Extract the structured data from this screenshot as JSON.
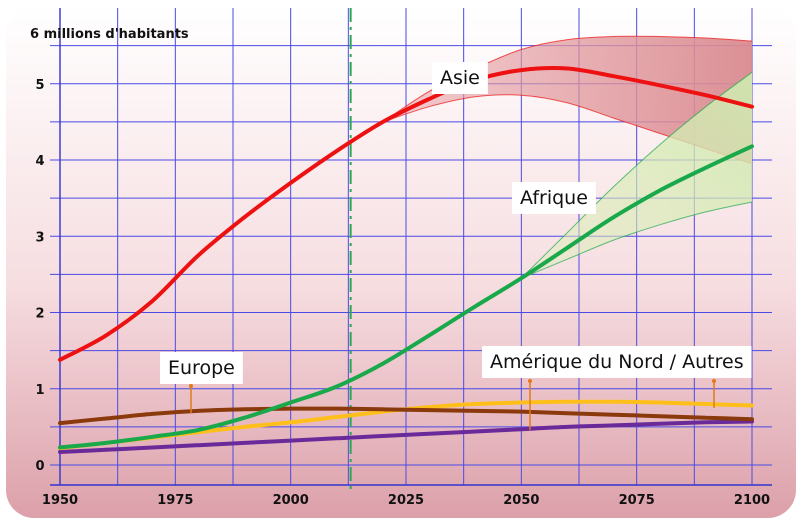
{
  "chart_data": {
    "type": "line",
    "ylabel": "6 millions d'habitants",
    "xlim": [
      1950,
      2100
    ],
    "ylim": [
      0,
      6
    ],
    "x_ticks": [
      1950,
      1975,
      2000,
      2025,
      2050,
      2075,
      2100
    ],
    "y_ticks": [
      0,
      1,
      2,
      3,
      4,
      5
    ],
    "grid": true,
    "vertical_marker_x": 2013,
    "x": [
      1950,
      1960,
      1970,
      1980,
      1990,
      2000,
      2010,
      2020,
      2030,
      2040,
      2050,
      2060,
      2070,
      2080,
      2090,
      2100
    ],
    "series": [
      {
        "name": "Asie",
        "color": "#ee1111",
        "values": [
          1.38,
          1.7,
          2.15,
          2.75,
          3.25,
          3.7,
          4.12,
          4.5,
          4.8,
          5.05,
          5.18,
          5.2,
          5.1,
          4.98,
          4.85,
          4.7
        ],
        "band_low": [
          null,
          null,
          null,
          null,
          null,
          null,
          null,
          4.5,
          4.7,
          4.83,
          4.85,
          4.75,
          4.55,
          4.35,
          4.15,
          3.95
        ],
        "band_high": [
          null,
          null,
          null,
          null,
          null,
          null,
          null,
          4.5,
          4.9,
          5.2,
          5.45,
          5.58,
          5.62,
          5.62,
          5.6,
          5.56
        ]
      },
      {
        "name": "Afrique",
        "color": "#19a84a",
        "values": [
          0.23,
          0.29,
          0.37,
          0.46,
          0.62,
          0.82,
          1.03,
          1.33,
          1.7,
          2.08,
          2.45,
          2.85,
          3.25,
          3.6,
          3.9,
          4.18
        ],
        "band_low": [
          null,
          null,
          null,
          null,
          null,
          null,
          null,
          null,
          null,
          null,
          2.45,
          2.7,
          2.95,
          3.15,
          3.32,
          3.45
        ],
        "band_high": [
          null,
          null,
          null,
          null,
          null,
          null,
          null,
          null,
          null,
          null,
          2.45,
          3.05,
          3.65,
          4.2,
          4.7,
          5.15
        ]
      },
      {
        "name": "Europe",
        "color": "#8a3a0c",
        "values": [
          0.55,
          0.61,
          0.67,
          0.71,
          0.73,
          0.74,
          0.74,
          0.73,
          0.72,
          0.71,
          0.7,
          0.68,
          0.66,
          0.64,
          0.62,
          0.6
        ]
      },
      {
        "name": "Amérique du Nord / Autres",
        "color": "#ffbf1a",
        "values": [
          0.22,
          0.29,
          0.36,
          0.43,
          0.5,
          0.56,
          0.63,
          0.7,
          0.76,
          0.8,
          0.82,
          0.83,
          0.83,
          0.82,
          0.8,
          0.78
        ]
      },
      {
        "name": "",
        "color": "#6a2a9a",
        "values": [
          0.17,
          0.2,
          0.23,
          0.26,
          0.29,
          0.32,
          0.35,
          0.38,
          0.41,
          0.44,
          0.47,
          0.5,
          0.52,
          0.54,
          0.56,
          0.57
        ]
      }
    ],
    "labels": [
      {
        "text": "Asie",
        "series": 0
      },
      {
        "text": "Afrique",
        "series": 1
      },
      {
        "text": "Europe",
        "series": 2
      },
      {
        "text": "Amérique du Nord / Autres",
        "series": 3
      }
    ]
  }
}
